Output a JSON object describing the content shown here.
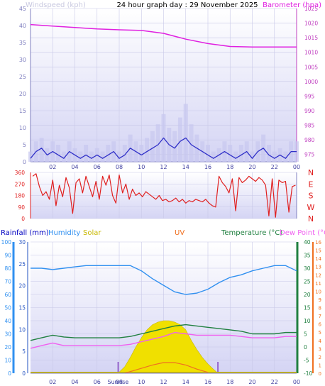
{
  "chart_data": [
    {
      "type": "line",
      "title": "24 hour graph day : 29 November 2025",
      "ylabel_left": "Windspeed (kph)",
      "ylabel_right": "Barometer (hpa)",
      "x_ticks": [
        "02",
        "04",
        "06",
        "08",
        "10",
        "12",
        "14",
        "16",
        "18",
        "20",
        "22",
        "00"
      ],
      "left_ticks": [
        0,
        5,
        10,
        15,
        20,
        25,
        30,
        35,
        40,
        45
      ],
      "ylim_left": [
        0,
        45
      ],
      "right_ticks": [
        975,
        980,
        985,
        990,
        995,
        1000,
        1005,
        1010,
        1015,
        1020,
        1025
      ],
      "ylim_right": [
        972.5,
        1025
      ],
      "series": [
        {
          "name": "Windspeed (kph)",
          "color": "#3030c8",
          "x": [
            0,
            0.5,
            1,
            1.5,
            2,
            2.5,
            3,
            3.5,
            4,
            4.5,
            5,
            5.5,
            6,
            6.5,
            7,
            7.5,
            8,
            8.5,
            9,
            9.5,
            10,
            10.5,
            11,
            11.5,
            12,
            12.5,
            13,
            13.5,
            14,
            14.5,
            15,
            15.5,
            16,
            16.5,
            17,
            17.5,
            18,
            18.5,
            19,
            19.5,
            20,
            20.5,
            21,
            21.5,
            22,
            22.5,
            23,
            23.5,
            24
          ],
          "values": [
            1,
            3,
            4,
            2,
            3,
            2,
            1,
            3,
            2,
            1,
            2,
            1,
            2,
            1,
            2,
            3,
            1,
            2,
            4,
            3,
            2,
            3,
            4,
            5,
            7,
            5,
            4,
            6,
            7,
            5,
            4,
            3,
            2,
            1,
            2,
            3,
            2,
            1,
            2,
            3,
            1,
            3,
            4,
            2,
            1,
            2,
            1,
            3,
            3
          ]
        },
        {
          "name": "Wind gust (kph)",
          "color": "#c8c8f0",
          "x": [
            0,
            0.5,
            1,
            1.5,
            2,
            2.5,
            3,
            3.5,
            4,
            4.5,
            5,
            5.5,
            6,
            6.5,
            7,
            7.5,
            8,
            8.5,
            9,
            9.5,
            10,
            10.5,
            11,
            11.5,
            12,
            12.5,
            13,
            13.5,
            14,
            14.5,
            15,
            15.5,
            16,
            16.5,
            17,
            17.5,
            18,
            18.5,
            19,
            19.5,
            20,
            20.5,
            21,
            21.5,
            22,
            22.5,
            23,
            23.5,
            24
          ],
          "values": [
            3,
            6,
            7,
            4,
            6,
            5,
            3,
            6,
            4,
            3,
            5,
            3,
            4,
            3,
            5,
            6,
            3,
            5,
            8,
            6,
            5,
            7,
            9,
            11,
            14,
            10,
            9,
            13,
            17,
            11,
            8,
            6,
            5,
            3,
            4,
            6,
            5,
            3,
            5,
            6,
            3,
            6,
            8,
            5,
            3,
            4,
            3,
            6,
            6
          ]
        },
        {
          "name": "Barometer (hpa)",
          "color": "#e020e0",
          "axis": "right",
          "x": [
            0,
            2,
            4,
            6,
            8,
            10,
            12,
            14,
            16,
            18,
            20,
            22,
            24
          ],
          "values": [
            1019.5,
            1019,
            1018.5,
            1018,
            1017.7,
            1017.5,
            1016.5,
            1014.5,
            1013,
            1012,
            1011.8,
            1011.8,
            1011.8
          ]
        }
      ]
    },
    {
      "type": "line",
      "ylabel_left": "",
      "direction_ticks": [
        0,
        90,
        180,
        270,
        360
      ],
      "compass_labels": [
        "N",
        "W",
        "S",
        "E",
        "N"
      ],
      "series": [
        {
          "name": "Wind direction",
          "color": "#e02020",
          "x": [
            0.2,
            0.5,
            0.8,
            1.1,
            1.4,
            1.7,
            2.0,
            2.3,
            2.6,
            2.9,
            3.2,
            3.5,
            3.8,
            4.1,
            4.4,
            4.7,
            5.0,
            5.3,
            5.6,
            5.9,
            6.2,
            6.5,
            6.8,
            7.1,
            7.4,
            7.7,
            8.0,
            8.3,
            8.6,
            8.9,
            9.2,
            9.5,
            9.8,
            10.1,
            10.4,
            10.7,
            11.0,
            11.3,
            11.6,
            11.9,
            12.2,
            12.5,
            12.8,
            13.1,
            13.4,
            13.7,
            14.0,
            14.3,
            14.6,
            14.9,
            15.2,
            15.5,
            15.8,
            16.1,
            16.4,
            16.7,
            17.0,
            17.3,
            17.6,
            17.9,
            18.2,
            18.5,
            18.8,
            19.1,
            19.4,
            19.7,
            20.0,
            20.3,
            20.6,
            20.9,
            21.2,
            21.5,
            21.8,
            22.1,
            22.4,
            22.7,
            23.0,
            23.3,
            23.6,
            23.9
          ],
          "values": [
            330,
            350,
            250,
            180,
            210,
            150,
            300,
            100,
            260,
            170,
            320,
            240,
            40,
            280,
            310,
            200,
            330,
            250,
            170,
            290,
            150,
            330,
            260,
            340,
            180,
            120,
            340,
            200,
            270,
            150,
            230,
            180,
            200,
            170,
            210,
            190,
            170,
            150,
            180,
            140,
            150,
            130,
            140,
            160,
            130,
            150,
            120,
            140,
            130,
            150,
            140,
            130,
            150,
            120,
            100,
            90,
            330,
            280,
            250,
            200,
            310,
            60,
            320,
            280,
            300,
            330,
            310,
            290,
            320,
            300,
            260,
            20,
            310,
            10,
            300,
            280,
            290,
            50,
            250,
            260
          ]
        }
      ]
    },
    {
      "type": "line",
      "labels_top": {
        "rainfall": "Rainfall (mm)",
        "humidity": "Humidity",
        "solar": "Solar",
        "uv": "UV",
        "temperature": "Temperature (°C)",
        "dewpoint": "Dew Point (°C)"
      },
      "x_ticks": [
        "02",
        "04",
        "06",
        "08",
        "Sunrise",
        "10",
        "12",
        "14",
        "16",
        "18",
        "20",
        "22",
        "00"
      ],
      "humidity_ticks": [
        0,
        10,
        20,
        30,
        40,
        50,
        60,
        70,
        80,
        90,
        100
      ],
      "rain_ticks": [
        0,
        5,
        10,
        15,
        20,
        25,
        30
      ],
      "temp_ticks": [
        -10,
        -5,
        0,
        5,
        10,
        15,
        20,
        25,
        30,
        35,
        40
      ],
      "uv_ticks": [
        0,
        1,
        2,
        3,
        4,
        5,
        6,
        7,
        8,
        9,
        10,
        11,
        12,
        13,
        14,
        15,
        16
      ],
      "sunrise_hour": 7.9,
      "sunset_hour": 16.9,
      "series": [
        {
          "name": "Humidity",
          "color": "#3090f0",
          "axis": "humidity",
          "x": [
            0,
            1,
            2,
            3,
            4,
            5,
            6,
            7,
            8,
            9,
            10,
            11,
            12,
            13,
            14,
            15,
            16,
            17,
            18,
            19,
            20,
            21,
            22,
            23,
            24
          ],
          "values": [
            80,
            80,
            79,
            80,
            81,
            82,
            82,
            82,
            82,
            82,
            78,
            72,
            67,
            62,
            60,
            61,
            64,
            69,
            73,
            75,
            78,
            80,
            82,
            82,
            78
          ]
        },
        {
          "name": "Temperature (°C)",
          "color": "#208040",
          "axis": "temp",
          "x": [
            0,
            1,
            2,
            3,
            4,
            5,
            6,
            7,
            8,
            9,
            10,
            11,
            12,
            13,
            14,
            15,
            16,
            17,
            18,
            19,
            20,
            21,
            22,
            23,
            24
          ],
          "values": [
            2.5,
            3.5,
            4.5,
            3.8,
            3.5,
            3.5,
            3.5,
            3.5,
            3.5,
            4,
            5,
            6,
            7,
            8,
            8.5,
            8,
            7.5,
            7,
            6.5,
            6,
            5,
            5,
            5,
            5.5,
            5.5
          ]
        },
        {
          "name": "Dew Point (°C)",
          "color": "#f060f0",
          "axis": "temp",
          "x": [
            0,
            1,
            2,
            3,
            4,
            5,
            6,
            7,
            8,
            9,
            10,
            11,
            12,
            13,
            14,
            15,
            16,
            17,
            18,
            19,
            20,
            21,
            22,
            23,
            24
          ],
          "values": [
            -0.5,
            0.5,
            1.5,
            0.5,
            0.5,
            0.5,
            0.5,
            0.5,
            0.5,
            1,
            2,
            3,
            4,
            5.5,
            5,
            4.5,
            4.5,
            4.5,
            4.5,
            4,
            3.5,
            3.5,
            3.5,
            4,
            4
          ]
        },
        {
          "name": "Solar",
          "color": "#f0e000",
          "axis": "humidity",
          "x": [
            7.9,
            8.5,
            9,
            9.5,
            10,
            10.5,
            11,
            11.5,
            12,
            12.5,
            13,
            13.5,
            14,
            14.5,
            15,
            15.5,
            16,
            16.5,
            16.9
          ],
          "values": [
            0,
            5,
            12,
            20,
            27,
            33,
            37,
            39,
            40,
            40,
            39,
            37,
            33,
            25,
            18,
            12,
            7,
            3,
            0
          ]
        },
        {
          "name": "UV",
          "color": "#f07020",
          "axis": "uv",
          "x": [
            8.5,
            9,
            10,
            11,
            12,
            13,
            14,
            15,
            16
          ],
          "values": [
            0,
            0.2,
            0.6,
            1.0,
            1.3,
            1.3,
            1.0,
            0.5,
            0.1
          ]
        },
        {
          "name": "Rainfall (mm)",
          "color": "#0000c0",
          "axis": "rain",
          "x": [
            0,
            24
          ],
          "values": [
            0,
            0
          ]
        }
      ]
    }
  ]
}
